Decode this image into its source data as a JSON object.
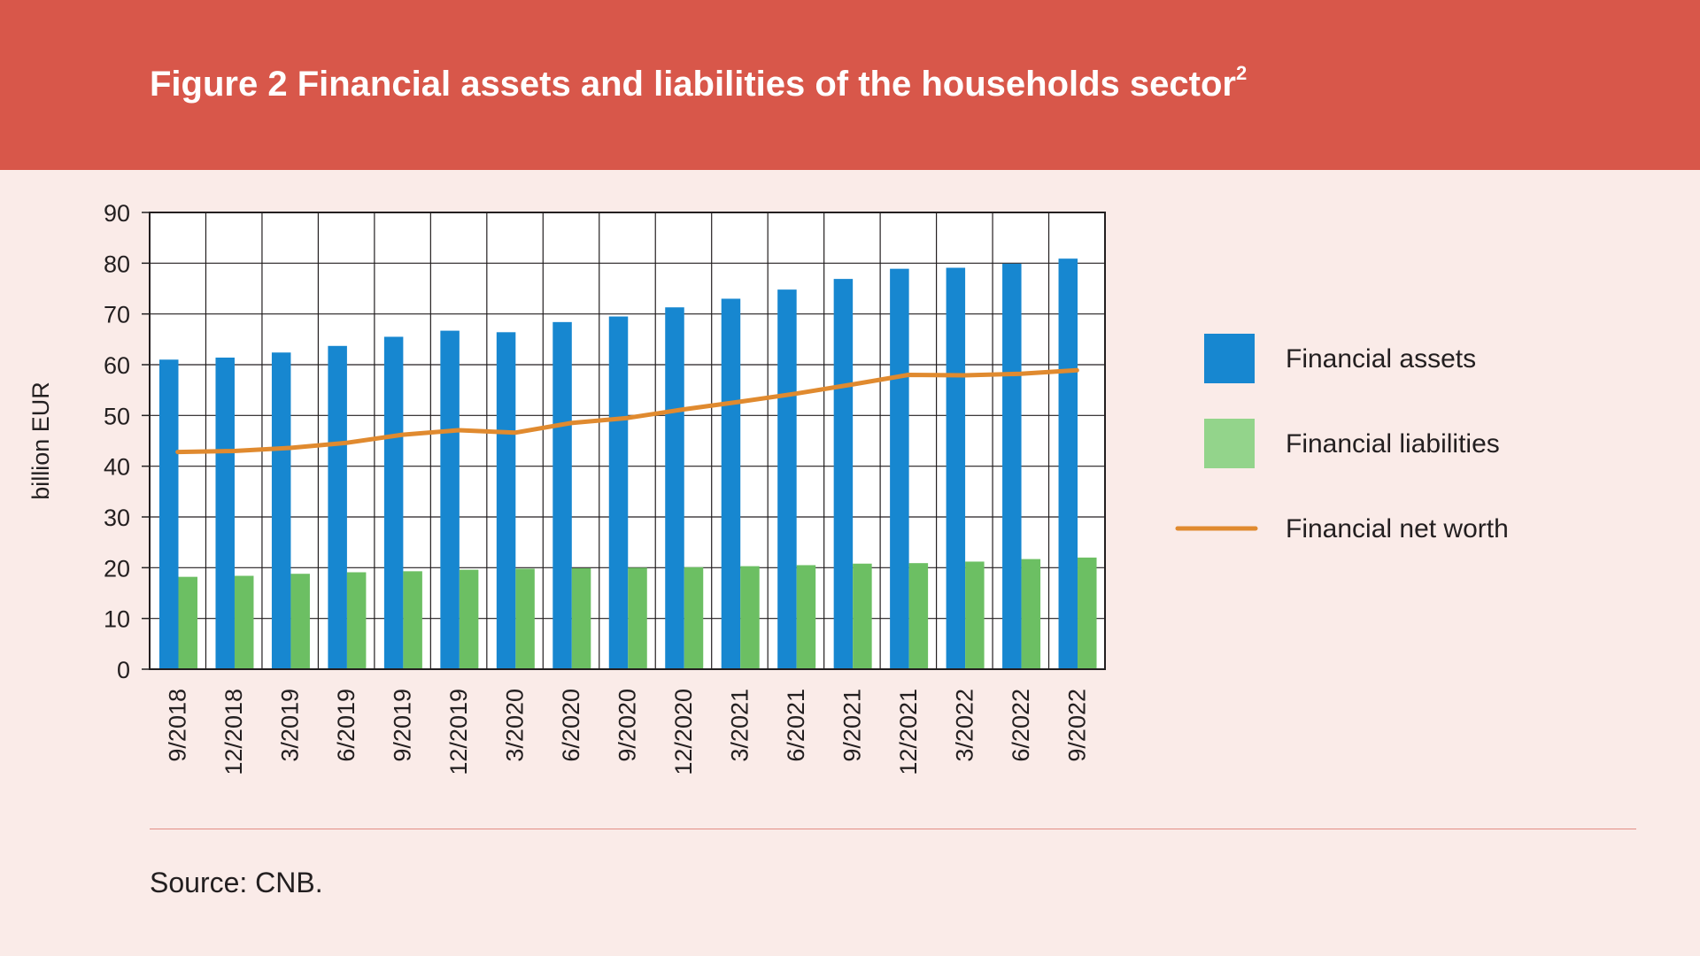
{
  "header": {
    "title": "Figure 2 Financial assets and liabilities of the households sector",
    "title_footnote": "2"
  },
  "source": {
    "text": "Source: CNB."
  },
  "colors": {
    "header_bg": "#d8574a",
    "page_bg": "#faebe8",
    "assets": "#1787d0",
    "liabilities": "#6cbf63",
    "liabilities_legend": "#93d48b",
    "net_worth": "#e08a2f"
  },
  "chart_data": {
    "type": "bar",
    "title": "Figure 2 Financial assets and liabilities of the households sector",
    "xlabel": "",
    "ylabel": "billion EUR",
    "ylim": [
      0,
      90
    ],
    "yticks": [
      0,
      10,
      20,
      30,
      40,
      50,
      60,
      70,
      80,
      90
    ],
    "grid": true,
    "legend_position": "right",
    "categories": [
      "9/2018",
      "12/2018",
      "3/2019",
      "6/2019",
      "9/2019",
      "12/2019",
      "3/2020",
      "6/2020",
      "9/2020",
      "12/2020",
      "3/2021",
      "6/2021",
      "9/2021",
      "12/2021",
      "3/2022",
      "6/2022",
      "9/2022"
    ],
    "series": [
      {
        "name": "Financial assets",
        "type": "bar",
        "values": [
          61.0,
          61.4,
          62.4,
          63.7,
          65.5,
          66.7,
          66.4,
          68.4,
          69.5,
          71.3,
          73.0,
          74.8,
          76.9,
          78.9,
          79.1,
          79.9,
          80.9
        ]
      },
      {
        "name": "Financial liabilities",
        "type": "bar",
        "values": [
          18.2,
          18.4,
          18.8,
          19.1,
          19.3,
          19.6,
          19.8,
          19.9,
          20.0,
          20.1,
          20.3,
          20.5,
          20.8,
          20.9,
          21.2,
          21.7,
          22.0
        ]
      },
      {
        "name": "Financial net worth",
        "type": "line",
        "values": [
          42.8,
          43.0,
          43.6,
          44.6,
          46.2,
          47.1,
          46.6,
          48.5,
          49.5,
          51.2,
          52.7,
          54.3,
          56.1,
          58.0,
          57.9,
          58.2,
          58.9
        ]
      }
    ]
  }
}
